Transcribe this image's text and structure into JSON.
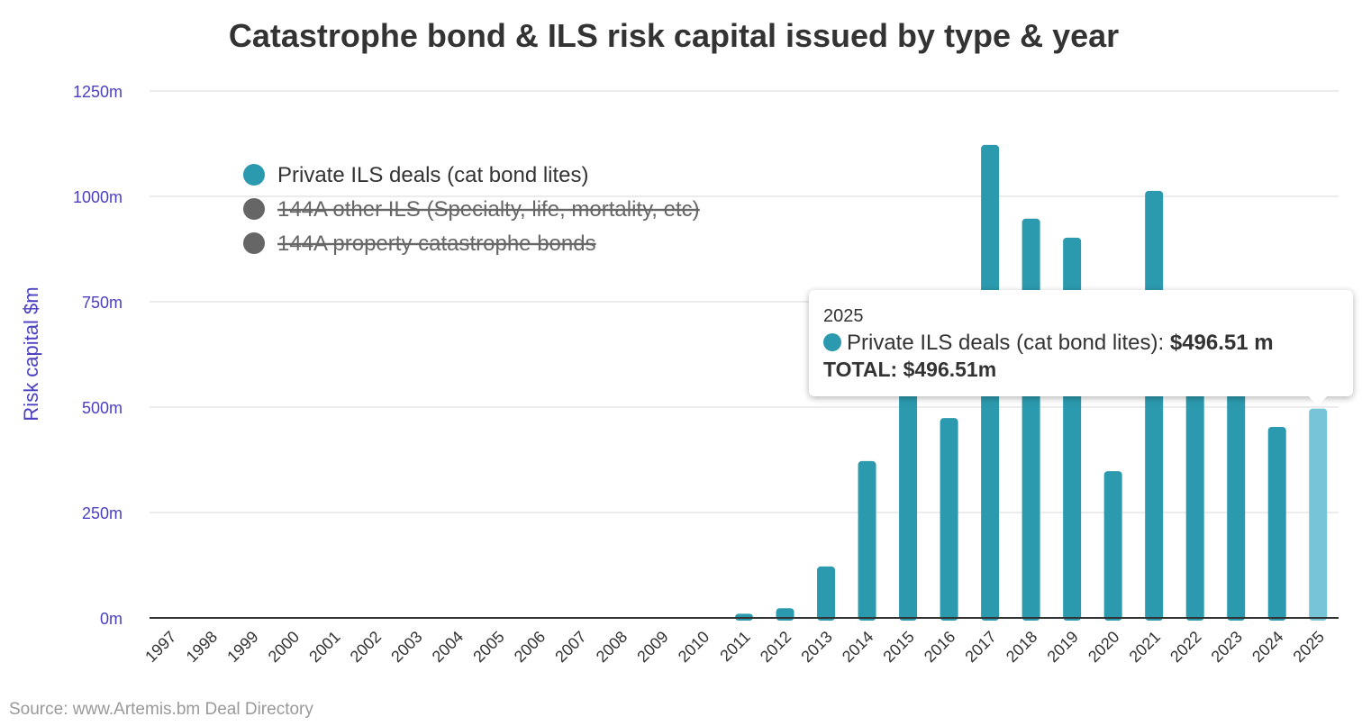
{
  "chart_data": {
    "type": "bar",
    "title": "Catastrophe bond & ILS risk capital issued by type & year",
    "ylabel": "Risk capital $m",
    "xlabel": "",
    "ylim": [
      0,
      1250
    ],
    "yticks": [
      "0m",
      "250m",
      "500m",
      "750m",
      "1000m",
      "1250m"
    ],
    "ytick_values": [
      0,
      250,
      500,
      750,
      1000,
      1250
    ],
    "grid": true,
    "legend_position": "top-left",
    "categories": [
      "1997",
      "1998",
      "1999",
      "2000",
      "2001",
      "2002",
      "2003",
      "2004",
      "2005",
      "2006",
      "2007",
      "2008",
      "2009",
      "2010",
      "2011",
      "2012",
      "2013",
      "2014",
      "2015",
      "2016",
      "2017",
      "2018",
      "2019",
      "2020",
      "2021",
      "2022",
      "2023",
      "2024",
      "2025"
    ],
    "series": [
      {
        "name": "Private ILS deals (cat bond lites)",
        "color": "#2c9aae",
        "visible": true,
        "values": [
          0,
          0,
          0,
          0,
          0,
          0,
          0,
          0,
          0,
          0,
          0,
          0,
          0,
          0,
          10,
          23,
          122,
          372,
          620,
          474,
          1122,
          947,
          902,
          348,
          1013,
          700,
          600,
          453,
          496.51
        ]
      },
      {
        "name": "144A other ILS (Specialty, life, mortality, etc)",
        "color": "#666666",
        "visible": false
      },
      {
        "name": "144A property catastrophe bonds",
        "color": "#666666",
        "visible": false
      }
    ],
    "highlight_color": "#76c4d6",
    "tooltip": {
      "year": "2025",
      "series_label": "Private ILS deals (cat bond lites):",
      "value": "$496.51 m",
      "total": "TOTAL: $496.51m"
    },
    "credit": "Source: www.Artemis.bm Deal Directory"
  }
}
